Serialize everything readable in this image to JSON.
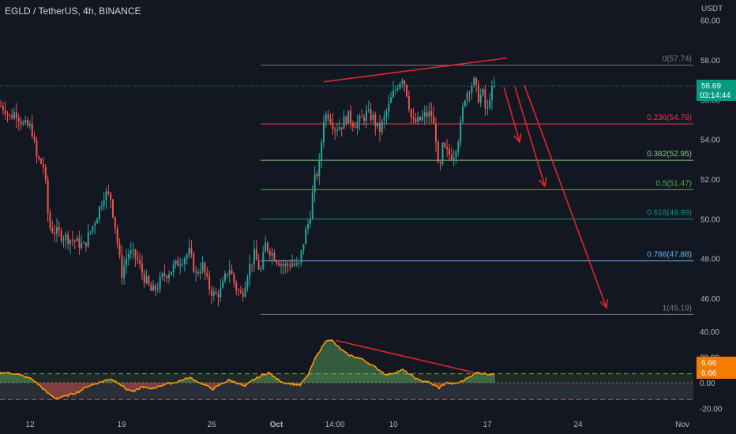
{
  "header": {
    "symbol_title": "EGLD / TetherUS, 4h, BINANCE",
    "quote_currency": "USDT"
  },
  "colors": {
    "background": "#131722",
    "up": "#26a69a",
    "down": "#ef5350",
    "axis_text": "#b2b5be",
    "drawing_red": "#e0262c",
    "osc_line": "#ff9800",
    "price_badge": "#089981",
    "osc_badge": "#f57c00"
  },
  "price_badge": {
    "value": "56.69",
    "countdown": "03:14:44"
  },
  "oscillator_badge": {
    "value_1": "6.66",
    "value_2": "6.66"
  },
  "chart_data": [
    {
      "type": "candlestick",
      "title": "EGLD / TetherUS, 4h, BINANCE",
      "x_ticks": [
        "12",
        "19",
        "26",
        "Oct",
        "14:00",
        "10",
        "17",
        "24",
        "Nov"
      ],
      "y_ticks": [
        "60.00",
        "58.00",
        "56.00",
        "54.00",
        "52.00",
        "50.00",
        "48.00",
        "46.00"
      ],
      "ylim": [
        44.4,
        60.8
      ],
      "last_price": 56.69,
      "grid": false,
      "price_anchors": [
        [
          0,
          55.7
        ],
        [
          6,
          55.6
        ],
        [
          12,
          55.1
        ],
        [
          20,
          55.4
        ],
        [
          30,
          54.7
        ],
        [
          40,
          54.6
        ],
        [
          46,
          53.1
        ],
        [
          56,
          52.6
        ],
        [
          62,
          49.6
        ],
        [
          72,
          49.3
        ],
        [
          82,
          49.1
        ],
        [
          94,
          48.9
        ],
        [
          106,
          48.6
        ],
        [
          116,
          49.5
        ],
        [
          124,
          50.3
        ],
        [
          132,
          51.3
        ],
        [
          140,
          51.1
        ],
        [
          146,
          49.6
        ],
        [
          154,
          47.2
        ],
        [
          162,
          48.3
        ],
        [
          172,
          48.1
        ],
        [
          182,
          47.1
        ],
        [
          192,
          46.3
        ],
        [
          200,
          46.6
        ],
        [
          206,
          47.1
        ],
        [
          216,
          47.4
        ],
        [
          228,
          47.9
        ],
        [
          240,
          48.3
        ],
        [
          248,
          47.2
        ],
        [
          256,
          47.7
        ],
        [
          264,
          46.6
        ],
        [
          272,
          46.1
        ],
        [
          280,
          46.4
        ],
        [
          290,
          47.6
        ],
        [
          298,
          46.6
        ],
        [
          306,
          46.1
        ],
        [
          314,
          47.4
        ],
        [
          322,
          48.2
        ],
        [
          330,
          47.3
        ],
        [
          336,
          48.7
        ],
        [
          342,
          48.4
        ],
        [
          350,
          48.0
        ],
        [
          360,
          47.6
        ],
        [
          370,
          47.8
        ],
        [
          378,
          47.5
        ],
        [
          386,
          49.2
        ],
        [
          392,
          50.0
        ],
        [
          398,
          51.9
        ],
        [
          404,
          52.6
        ],
        [
          410,
          55.1
        ],
        [
          416,
          55.3
        ],
        [
          424,
          54.6
        ],
        [
          432,
          54.7
        ],
        [
          440,
          55.2
        ],
        [
          448,
          54.8
        ],
        [
          456,
          54.9
        ],
        [
          464,
          55.3
        ],
        [
          472,
          55.1
        ],
        [
          480,
          54.4
        ],
        [
          488,
          55.2
        ],
        [
          496,
          56.1
        ],
        [
          504,
          56.8
        ],
        [
          510,
          57.2
        ],
        [
          516,
          56.2
        ],
        [
          522,
          54.8
        ],
        [
          530,
          54.9
        ],
        [
          538,
          55.2
        ],
        [
          546,
          55.3
        ],
        [
          552,
          54.1
        ],
        [
          556,
          51.9
        ],
        [
          560,
          53.6
        ],
        [
          566,
          53.3
        ],
        [
          574,
          53.2
        ],
        [
          582,
          54.3
        ],
        [
          588,
          56.1
        ],
        [
          594,
          56.6
        ],
        [
          600,
          56.9
        ],
        [
          606,
          56.1
        ],
        [
          612,
          56.3
        ],
        [
          616,
          55.1
        ],
        [
          620,
          56.2
        ],
        [
          626,
          56.6
        ]
      ],
      "fib_levels": [
        {
          "label": "0(57.74)",
          "value": 57.74,
          "color": "#787b86"
        },
        {
          "label": "0.236(54.78)",
          "value": 54.78,
          "color": "#f23645"
        },
        {
          "label": "0.382(52.95)",
          "value": 52.95,
          "color": "#81c784"
        },
        {
          "label": "0.5(51.47)",
          "value": 51.47,
          "color": "#4caf50"
        },
        {
          "label": "0.618(49.99)",
          "value": 49.99,
          "color": "#089981"
        },
        {
          "label": "0.786(47.88)",
          "value": 47.88,
          "color": "#64b5f6"
        },
        {
          "label": "1(45.19)",
          "value": 45.19,
          "color": "#787b86"
        }
      ]
    },
    {
      "type": "bar",
      "panel": "oscillator",
      "y_ticks": [
        "40.00",
        "20.00",
        "0.00",
        "-20.00"
      ],
      "ylim": [
        -22,
        42
      ],
      "upper_band": 7,
      "lower_band": -7,
      "last_value": 6.66,
      "osc_anchors": [
        [
          0,
          8
        ],
        [
          20,
          7
        ],
        [
          40,
          3
        ],
        [
          50,
          -2
        ],
        [
          60,
          -8
        ],
        [
          70,
          -12
        ],
        [
          80,
          -11
        ],
        [
          90,
          -9
        ],
        [
          100,
          -7
        ],
        [
          110,
          -3
        ],
        [
          120,
          -1
        ],
        [
          130,
          1
        ],
        [
          140,
          3
        ],
        [
          150,
          0
        ],
        [
          160,
          -5
        ],
        [
          170,
          -7
        ],
        [
          180,
          -3
        ],
        [
          190,
          -5
        ],
        [
          200,
          -3
        ],
        [
          210,
          -1
        ],
        [
          220,
          0
        ],
        [
          230,
          2
        ],
        [
          240,
          4
        ],
        [
          250,
          1
        ],
        [
          260,
          -2
        ],
        [
          270,
          -5
        ],
        [
          280,
          -1
        ],
        [
          290,
          2
        ],
        [
          300,
          0
        ],
        [
          310,
          -3
        ],
        [
          320,
          2
        ],
        [
          330,
          5
        ],
        [
          340,
          8
        ],
        [
          350,
          3
        ],
        [
          360,
          0
        ],
        [
          370,
          -1
        ],
        [
          380,
          -2
        ],
        [
          390,
          6
        ],
        [
          400,
          20
        ],
        [
          410,
          30
        ],
        [
          415,
          34
        ],
        [
          420,
          33
        ],
        [
          430,
          27
        ],
        [
          440,
          22
        ],
        [
          450,
          20
        ],
        [
          460,
          18
        ],
        [
          470,
          14
        ],
        [
          480,
          10
        ],
        [
          490,
          6
        ],
        [
          500,
          8
        ],
        [
          510,
          10
        ],
        [
          520,
          6
        ],
        [
          530,
          2
        ],
        [
          540,
          1
        ],
        [
          550,
          -2
        ],
        [
          556,
          -4
        ],
        [
          565,
          0
        ],
        [
          575,
          -1
        ],
        [
          585,
          1
        ],
        [
          595,
          5
        ],
        [
          605,
          8
        ],
        [
          615,
          7
        ],
        [
          625,
          6.66
        ]
      ]
    }
  ]
}
